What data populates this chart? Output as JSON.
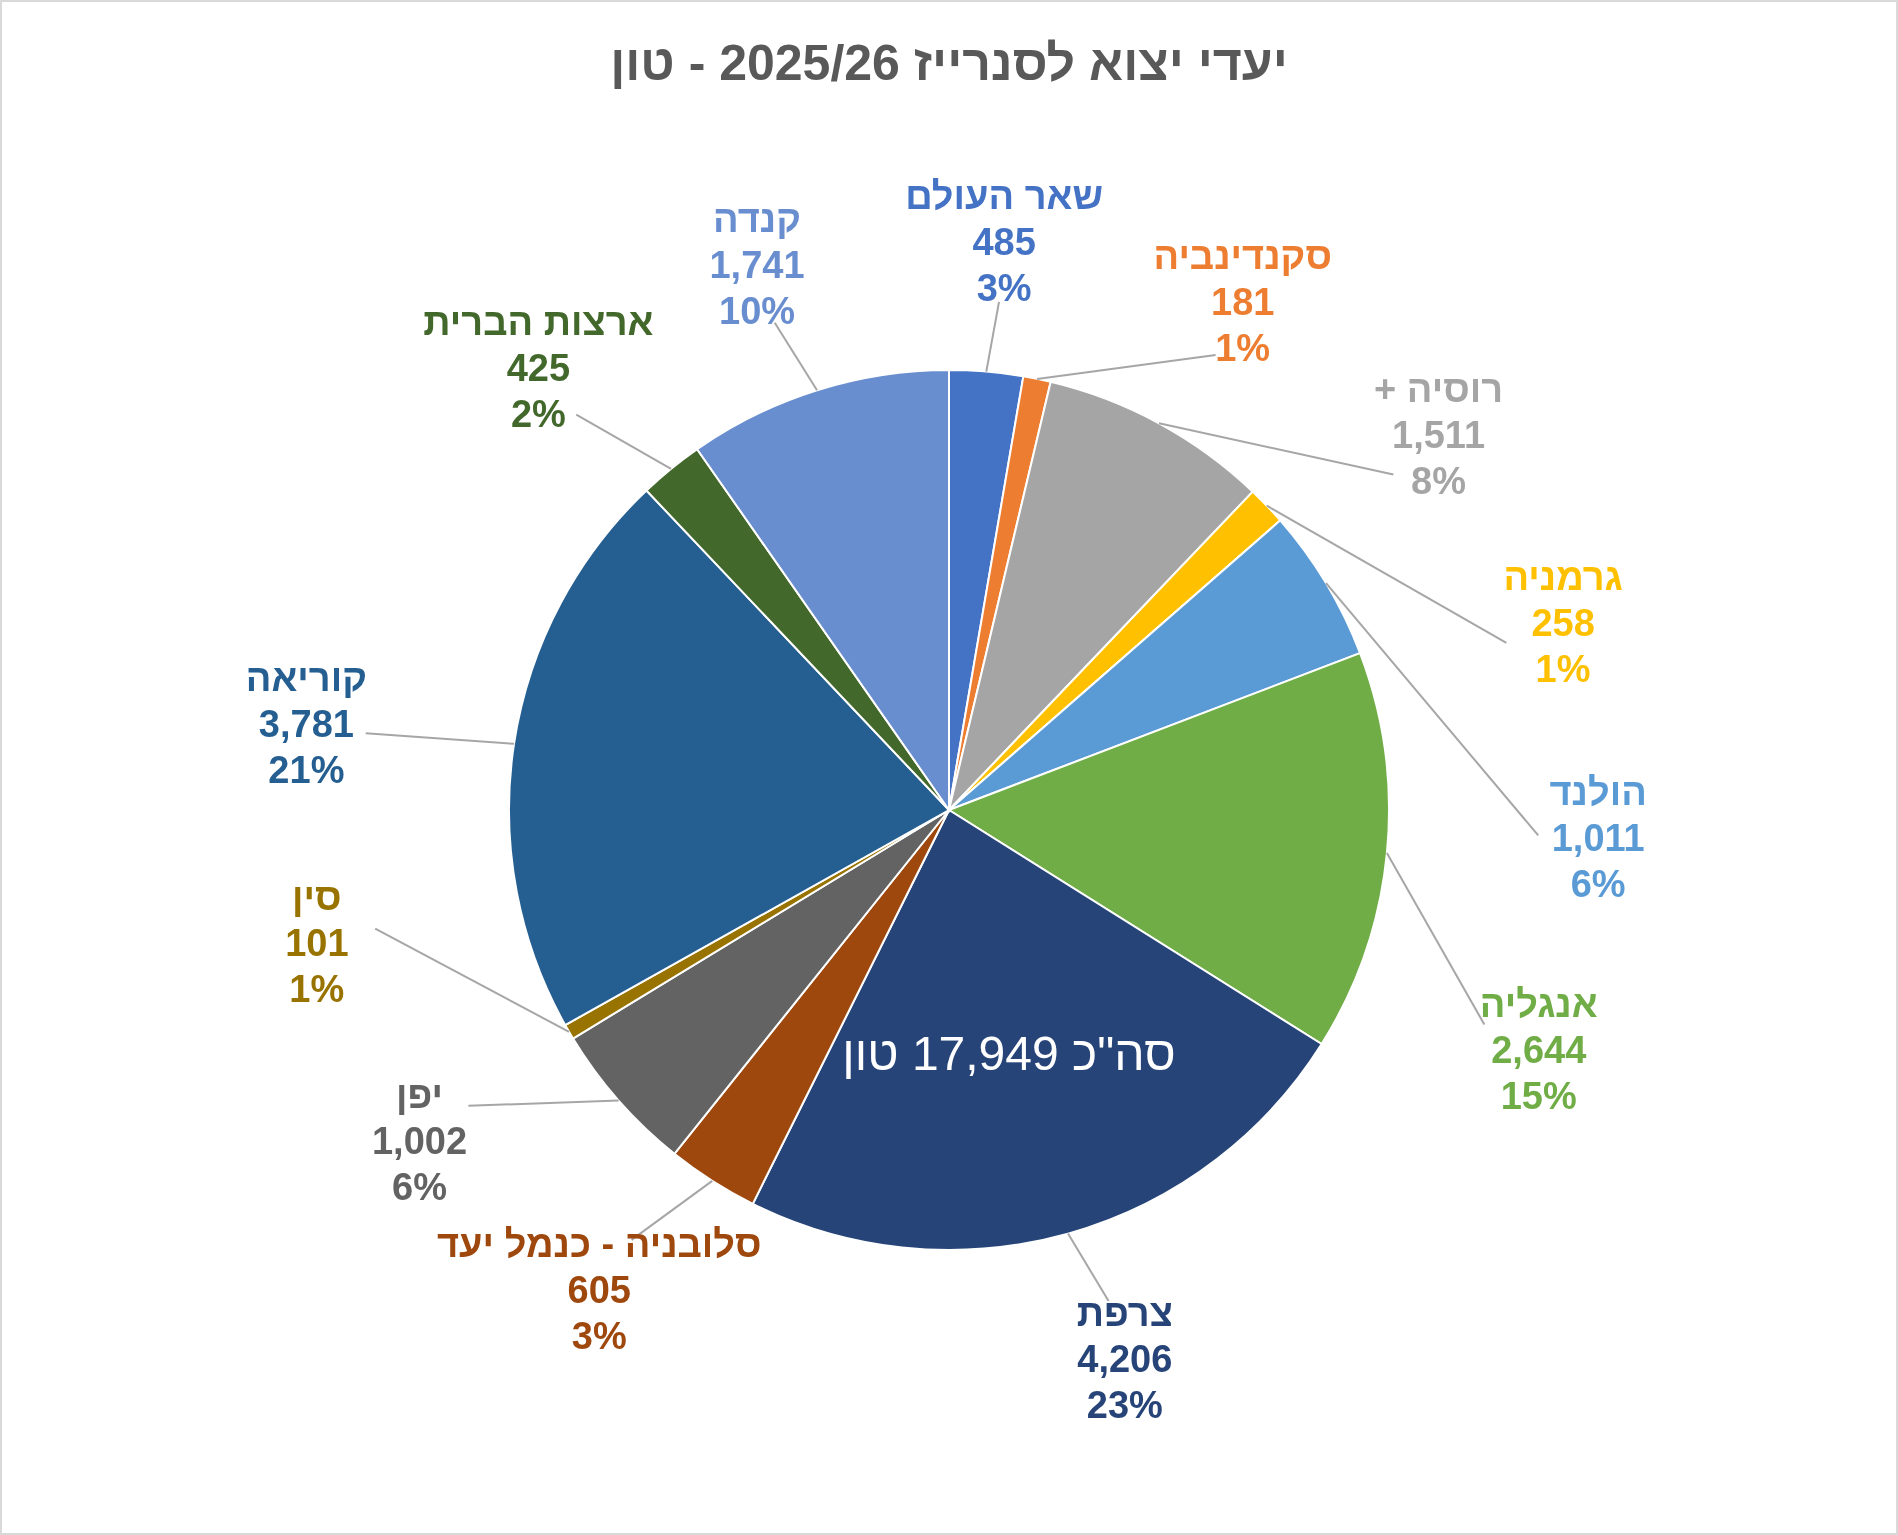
{
  "chart_data": {
    "type": "pie",
    "title": "יעדי יצוא לסנרייז 2025/26 - טון",
    "categories": [
      "שאר העולם",
      "סקנדינביה",
      "רוסיה +",
      "גרמניה",
      "הולנד",
      "אנגליה",
      "צרפת",
      "סלובניה - כנמל יעד",
      "יפן",
      "סין",
      "קוריאה",
      "ארצות הברית",
      "קנדה"
    ],
    "values": [
      485,
      181,
      1511,
      258,
      1011,
      2644,
      4206,
      605,
      1002,
      101,
      3781,
      425,
      1741
    ],
    "colors": [
      "#4472c4",
      "#ed7d31",
      "#a5a5a5",
      "#ffc000",
      "#5b9bd5",
      "#70ad47",
      "#264478",
      "#9e480e",
      "#636363",
      "#997300",
      "#255e91",
      "#43682b",
      "#698ed0"
    ],
    "value_labels": [
      "485\n3%",
      "181\n1%",
      "1,511\n8%",
      "258\n1%",
      "1,011\n6%",
      "2,644\n15%",
      "4,206\n23%",
      "605\n3%",
      "1,002\n6%",
      "101\n1%",
      "3,781\n21%",
      "425\n2%",
      "1,741\n10%"
    ],
    "annotations": [
      "סה\"כ 17,949 טון"
    ]
  }
}
